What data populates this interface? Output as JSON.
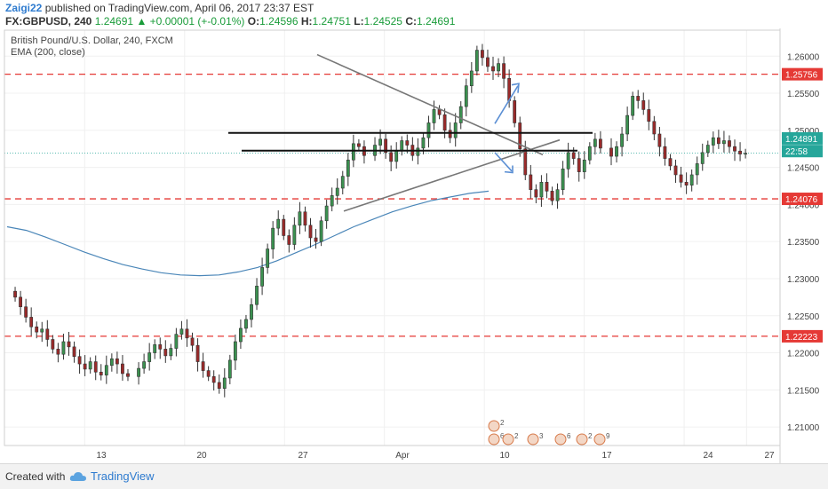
{
  "header": {
    "username": "Zaigi22",
    "published_text": "published on TradingView.com, April 06, 2017 23:37 EST",
    "symbol": "FX:GBPUSD, 240",
    "last": "1.24691",
    "change": "+0.00001 (+-0.01%)",
    "open_label": "O:",
    "open": "1.24596",
    "high_label": "H:",
    "high": "1.24751",
    "low_label": "L:",
    "low": "1.24525",
    "close_label": "C:",
    "close": "1.24691"
  },
  "chart_data": {
    "type": "line",
    "title": "British Pound/U.S. Dollar, 240, FXCM",
    "indicator": "EMA (200, close)",
    "ylim": [
      1.2075,
      1.2635
    ],
    "yticks": [
      "1.26000",
      "1.25500",
      "1.25000",
      "1.24500",
      "1.24000",
      "1.23500",
      "1.23000",
      "1.22500",
      "1.22000",
      "1.21500",
      "1.21000"
    ],
    "ytick_values": [
      1.26,
      1.255,
      1.25,
      1.245,
      1.24,
      1.235,
      1.23,
      1.225,
      1.22,
      1.215,
      1.21
    ],
    "xticks": [
      "13",
      "20",
      "27",
      "Apr",
      "10",
      "17",
      "24",
      "27"
    ],
    "xtick_index": [
      24,
      56,
      88,
      120,
      152,
      184,
      216,
      236
    ],
    "n_bars": 245,
    "grid": true,
    "price_tags": [
      {
        "label": "1.25756",
        "value": 1.25756,
        "color": "#e53935"
      },
      {
        "label": "1.24891",
        "value": 1.24891,
        "color": "#26a69a"
      },
      {
        "label": "22:58",
        "value": 1.2472,
        "color": "#26a69a"
      },
      {
        "label": "1.24076",
        "value": 1.24076,
        "color": "#e53935"
      },
      {
        "label": "1.22223",
        "value": 1.22223,
        "color": "#e53935"
      }
    ],
    "horizontal_levels": [
      {
        "value": 1.25756,
        "style": "dashed",
        "color": "#e53935"
      },
      {
        "value": 1.24076,
        "style": "dashed",
        "color": "#e53935"
      },
      {
        "value": 1.22223,
        "style": "dashed",
        "color": "#e53935"
      }
    ],
    "close_series": [
      1.2275,
      1.2262,
      1.2248,
      1.2235,
      1.2228,
      1.2232,
      1.2218,
      1.2205,
      1.2198,
      1.2215,
      1.2208,
      1.2195,
      1.2185,
      1.2178,
      1.2188,
      1.2174,
      1.217,
      1.2183,
      1.2192,
      1.2185,
      1.2172,
      1.2168,
      1.2179,
      1.2188,
      1.22,
      1.2211,
      1.2205,
      1.2196,
      1.2206,
      1.2225,
      1.2232,
      1.222,
      1.221,
      1.2188,
      1.2176,
      1.2168,
      1.216,
      1.2152,
      1.2166,
      1.219,
      1.2215,
      1.2233,
      1.2245,
      1.2265,
      1.229,
      1.2315,
      1.234,
      1.2368,
      1.238,
      1.2358,
      1.2346,
      1.2372,
      1.239,
      1.2372,
      1.2355,
      1.235,
      1.2378,
      1.2398,
      1.2412,
      1.2422,
      1.2438,
      1.246,
      1.2482,
      1.2478,
      1.2466,
      1.248,
      1.2488,
      1.247,
      1.2458,
      1.2472,
      1.2486,
      1.248,
      1.2466,
      1.2476,
      1.249,
      1.251,
      1.2528,
      1.2521,
      1.25,
      1.249,
      1.251,
      1.2532,
      1.256,
      1.258,
      1.2608,
      1.2598,
      1.2586,
      1.258,
      1.259,
      1.257,
      1.254,
      1.251,
      1.2475,
      1.244,
      1.242,
      1.241,
      1.243,
      1.2418,
      1.2405,
      1.242,
      1.2448,
      1.247,
      1.2462,
      1.2444,
      1.246,
      1.2478,
      1.2488,
      1.2476,
      1.2465,
      1.2478,
      1.2495,
      1.252,
      1.2546,
      1.254,
      1.2528,
      1.2512,
      1.2495,
      1.2478,
      1.2462,
      1.2452,
      1.244,
      1.243,
      1.2426,
      1.244,
      1.2455,
      1.247,
      1.248,
      1.249,
      1.2482,
      1.2486,
      1.2478,
      1.2472,
      1.2468,
      1.2469
    ],
    "ema200": [
      1.237,
      1.2365,
      1.2356,
      1.2346,
      1.2336,
      1.2327,
      1.2319,
      1.2313,
      1.2308,
      1.2305,
      1.2304,
      1.2305,
      1.2309,
      1.2315,
      1.2324,
      1.2335,
      1.2346,
      1.2358,
      1.237,
      1.238,
      1.239,
      1.2398,
      1.2405,
      1.241,
      1.2415,
      1.2418
    ],
    "series": [
      {
        "name": "EMA (200, close)",
        "color": "#4a86b8"
      }
    ]
  },
  "footer": {
    "created_with": "Created with",
    "brand": "TradingView"
  }
}
